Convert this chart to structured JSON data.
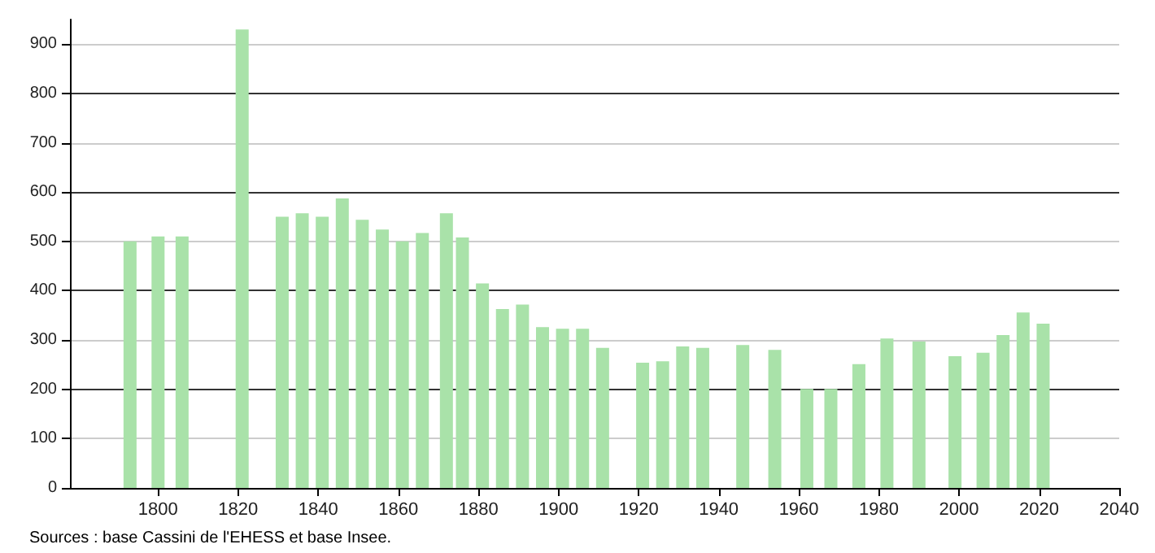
{
  "chart_data": {
    "type": "bar",
    "x": [
      1793,
      1800,
      1806,
      1821,
      1831,
      1836,
      1841,
      1846,
      1851,
      1856,
      1861,
      1866,
      1872,
      1876,
      1881,
      1886,
      1891,
      1896,
      1901,
      1906,
      1911,
      1921,
      1926,
      1931,
      1936,
      1946,
      1954,
      1962,
      1968,
      1975,
      1982,
      1990,
      1999,
      2006,
      2011,
      2016,
      2021
    ],
    "values": [
      500,
      510,
      510,
      930,
      550,
      557,
      550,
      587,
      544,
      524,
      500,
      517,
      557,
      508,
      415,
      363,
      372,
      326,
      323,
      323,
      284,
      254,
      257,
      287,
      284,
      290,
      280,
      201,
      201,
      251,
      303,
      297,
      267,
      274,
      310,
      356,
      333
    ],
    "color": "#a9e2a9",
    "xlim": [
      1778,
      2040
    ],
    "xticks": [
      1800,
      1820,
      1840,
      1860,
      1880,
      1900,
      1920,
      1940,
      1960,
      1980,
      2000,
      2020,
      2040
    ],
    "ylim": [
      0,
      950
    ],
    "yticks": [
      0,
      100,
      200,
      300,
      400,
      500,
      600,
      700,
      800,
      900
    ],
    "grid": "y",
    "annotations": [
      "Sources : base Cassini de l'EHESS et base Insee."
    ]
  }
}
